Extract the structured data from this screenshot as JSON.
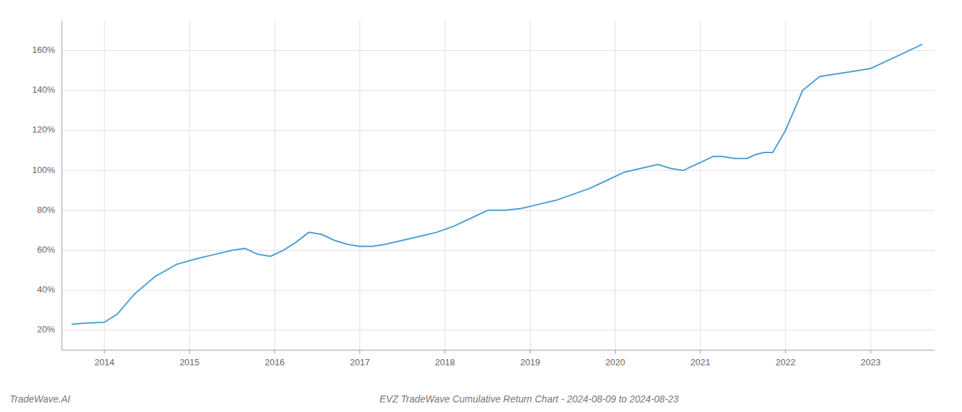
{
  "chart_data": {
    "type": "line",
    "title": "EVZ TradeWave Cumulative Return Chart - 2024-08-09 to 2024-08-23",
    "annotations": [
      "TradeWave.AI"
    ],
    "color": "#4a9fd4",
    "grid": true,
    "x": [
      2013.62,
      2013.75,
      2014.0,
      2014.15,
      2014.35,
      2014.6,
      2014.85,
      2015.1,
      2015.3,
      2015.5,
      2015.65,
      2015.8,
      2015.95,
      2016.1,
      2016.25,
      2016.4,
      2016.55,
      2016.7,
      2016.85,
      2017.0,
      2017.15,
      2017.3,
      2017.5,
      2017.7,
      2017.9,
      2018.1,
      2018.3,
      2018.5,
      2018.7,
      2018.9,
      2019.1,
      2019.3,
      2019.5,
      2019.7,
      2019.9,
      2020.1,
      2020.3,
      2020.5,
      2020.65,
      2020.8,
      2021.0,
      2021.15,
      2021.25,
      2021.4,
      2021.55,
      2021.65,
      2021.75,
      2021.85,
      2022.0,
      2022.2,
      2022.4,
      2022.55,
      2022.7,
      2022.85,
      2023.0,
      2023.2,
      2023.4,
      2023.6
    ],
    "values": [
      23,
      23.5,
      24,
      28,
      38,
      47,
      53,
      56,
      58,
      60,
      61,
      58,
      57,
      60,
      64,
      69,
      68,
      65,
      63,
      62,
      62,
      63,
      65,
      67,
      69,
      72,
      76,
      80,
      80,
      81,
      83,
      85,
      88,
      91,
      95,
      99,
      101,
      103,
      101,
      100,
      104,
      107,
      107,
      106,
      106,
      108,
      109,
      109,
      120,
      140,
      147,
      148,
      149,
      150,
      151,
      155,
      159,
      163
    ],
    "xlim": [
      2013.5,
      2023.75
    ],
    "ylim": [
      10,
      175
    ],
    "xticks": [
      2014,
      2015,
      2016,
      2017,
      2018,
      2019,
      2020,
      2021,
      2022,
      2023
    ],
    "yticks": [
      {
        "value": 20,
        "label": "20%"
      },
      {
        "value": 40,
        "label": "40%"
      },
      {
        "value": 60,
        "label": "60%"
      },
      {
        "value": 80,
        "label": "80%"
      },
      {
        "value": 100,
        "label": "100%"
      },
      {
        "value": 120,
        "label": "120%"
      },
      {
        "value": 140,
        "label": "140%"
      },
      {
        "value": 160,
        "label": "160%"
      }
    ]
  }
}
